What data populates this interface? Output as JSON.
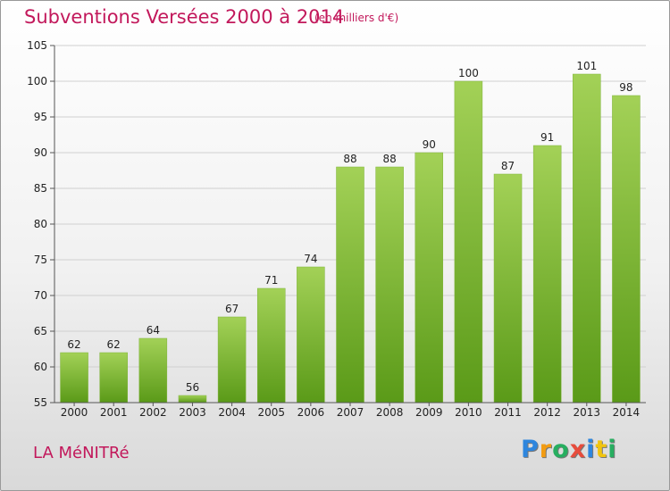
{
  "header": {
    "title": "Subventions Versées 2000 à 2014",
    "subtitle": "(en milliers d'€)"
  },
  "footer": {
    "commune": "LA MéNITRé",
    "logo_letters": [
      {
        "ch": "P",
        "color": "#2e86de"
      },
      {
        "ch": "r",
        "color": "#f39c12"
      },
      {
        "ch": "o",
        "color": "#27ae60"
      },
      {
        "ch": "x",
        "color": "#e74c3c"
      },
      {
        "ch": "i",
        "color": "#2e86de"
      },
      {
        "ch": "t",
        "color": "#f1c40f"
      },
      {
        "ch": "i",
        "color": "#27ae60"
      }
    ]
  },
  "chart_data": {
    "type": "bar",
    "categories": [
      "2000",
      "2001",
      "2002",
      "2003",
      "2004",
      "2005",
      "2006",
      "2007",
      "2008",
      "2009",
      "2010",
      "2011",
      "2012",
      "2013",
      "2014"
    ],
    "values": [
      62,
      62,
      64,
      56,
      67,
      71,
      74,
      88,
      88,
      90,
      100,
      87,
      91,
      101,
      98
    ],
    "ylim": [
      55,
      105
    ],
    "yticks": [
      55,
      60,
      65,
      70,
      75,
      80,
      85,
      90,
      95,
      100,
      105
    ],
    "grid": true,
    "bar_color_top": "#a3d157",
    "bar_color_bottom": "#5a9a18"
  }
}
